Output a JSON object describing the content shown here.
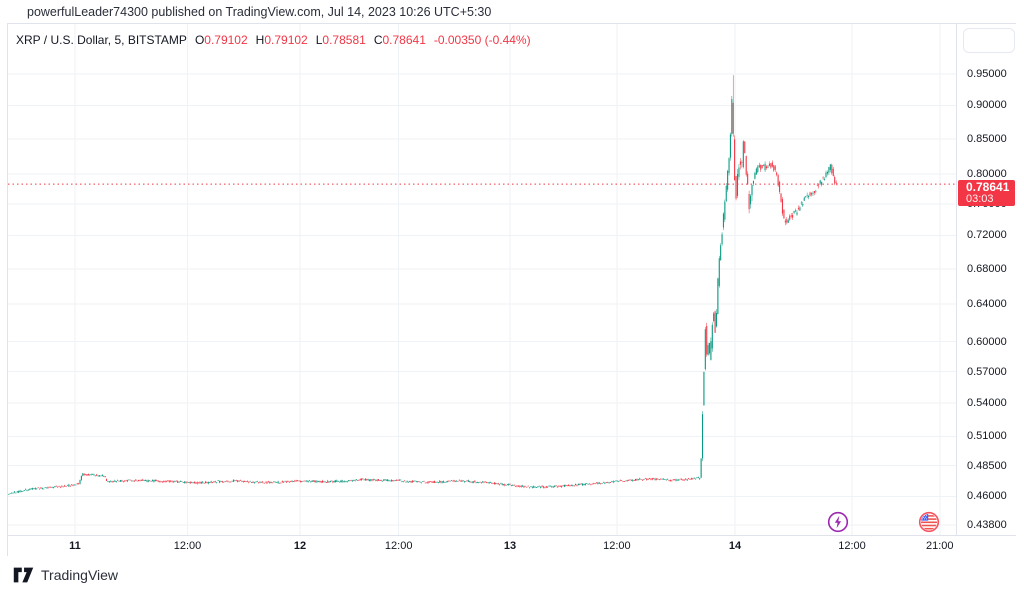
{
  "header": {
    "text": "powerfulLeader74300 published on TradingView.com, Jul 14, 2023 10:26 UTC+5:30"
  },
  "legend": {
    "symbol": "XRP / U.S. Dollar, 5, BITSTAMP",
    "ohlc": [
      {
        "k": "O",
        "v": "0.79102"
      },
      {
        "k": "H",
        "v": "0.79102"
      },
      {
        "k": "L",
        "v": "0.78581"
      },
      {
        "k": "C",
        "v": "0.78641"
      }
    ],
    "change": "-0.00350 (-0.44%)"
  },
  "price_label": {
    "price": "0.78641",
    "countdown": "03:03"
  },
  "footer": {
    "brand": "TradingView"
  },
  "chart_data": {
    "type": "candlestick",
    "title": "XRP / U.S. Dollar, 5, BITSTAMP",
    "symbol": "XRP/USD",
    "exchange": "BITSTAMP",
    "interval_minutes": 5,
    "scale": "log",
    "grid": true,
    "last": {
      "open": 0.79102,
      "high": 0.79102,
      "low": 0.78581,
      "close": 0.78641,
      "change": -0.0035,
      "change_percent": -0.44
    },
    "visible_price_range": [
      0.43,
      1.03
    ],
    "price_ticks": [
      {
        "label": "0.95000",
        "value": 0.95
      },
      {
        "label": "0.90000",
        "value": 0.9
      },
      {
        "label": "0.85000",
        "value": 0.85
      },
      {
        "label": "0.80000",
        "value": 0.8
      },
      {
        "label": "0.76000",
        "value": 0.76
      },
      {
        "label": "0.72000",
        "value": 0.72
      },
      {
        "label": "0.68000",
        "value": 0.68
      },
      {
        "label": "0.64000",
        "value": 0.64
      },
      {
        "label": "0.60000",
        "value": 0.6
      },
      {
        "label": "0.57000",
        "value": 0.57
      },
      {
        "label": "0.54000",
        "value": 0.54
      },
      {
        "label": "0.51000",
        "value": 0.51
      },
      {
        "label": "0.48500",
        "value": 0.485
      },
      {
        "label": "0.46000",
        "value": 0.46
      },
      {
        "label": "0.43800",
        "value": 0.438
      }
    ],
    "time_ticks": [
      {
        "label": "11",
        "day": 11,
        "bold": true
      },
      {
        "label": "12:00",
        "day": 11.5,
        "bold": false
      },
      {
        "label": "12",
        "day": 12,
        "bold": true
      },
      {
        "label": "12:00",
        "day": 12.47,
        "bold": false
      },
      {
        "label": "13",
        "day": 13,
        "bold": true
      },
      {
        "label": "12:00",
        "day": 13.475,
        "bold": false
      },
      {
        "label": "14",
        "day": 14,
        "bold": true
      },
      {
        "label": "12:00",
        "day": 14.5,
        "bold": false
      },
      {
        "label": "21:00",
        "day": 14.875,
        "bold": false
      }
    ],
    "start_day": 10.703,
    "end_day": 14.436,
    "candle_interval_days": 0.0062,
    "seed": 1337,
    "spike": {
      "day": 13.991,
      "high": 0.948
    },
    "path_keyframes": [
      [
        10.703,
        0.462
      ],
      [
        10.8,
        0.4658
      ],
      [
        10.95,
        0.4682
      ],
      [
        11.02,
        0.47
      ],
      [
        11.035,
        0.4778
      ],
      [
        11.1,
        0.4768
      ],
      [
        11.13,
        0.477
      ],
      [
        11.145,
        0.4718
      ],
      [
        11.25,
        0.473
      ],
      [
        11.4,
        0.4722
      ],
      [
        11.55,
        0.4708
      ],
      [
        11.7,
        0.4725
      ],
      [
        11.85,
        0.471
      ],
      [
        12.0,
        0.4722
      ],
      [
        12.15,
        0.4718
      ],
      [
        12.3,
        0.4735
      ],
      [
        12.45,
        0.4728
      ],
      [
        12.6,
        0.4712
      ],
      [
        12.75,
        0.4726
      ],
      [
        12.9,
        0.471
      ],
      [
        13.0,
        0.4692
      ],
      [
        13.1,
        0.4675
      ],
      [
        13.22,
        0.468
      ],
      [
        13.35,
        0.4698
      ],
      [
        13.5,
        0.4725
      ],
      [
        13.62,
        0.4742
      ],
      [
        13.72,
        0.473
      ],
      [
        13.8,
        0.4738
      ],
      [
        13.85,
        0.475
      ],
      [
        13.858,
        0.525
      ],
      [
        13.863,
        0.58
      ],
      [
        13.868,
        0.562
      ],
      [
        13.872,
        0.63
      ],
      [
        13.877,
        0.582
      ],
      [
        13.884,
        0.596
      ],
      [
        13.892,
        0.58
      ],
      [
        13.9,
        0.612
      ],
      [
        13.908,
        0.636
      ],
      [
        13.916,
        0.608
      ],
      [
        13.926,
        0.66
      ],
      [
        13.936,
        0.7
      ],
      [
        13.947,
        0.73
      ],
      [
        13.958,
        0.762
      ],
      [
        13.968,
        0.792
      ],
      [
        13.978,
        0.828
      ],
      [
        13.986,
        0.868
      ],
      [
        13.991,
        0.94
      ],
      [
        13.9955,
        0.845
      ],
      [
        14.002,
        0.79
      ],
      [
        14.008,
        0.762
      ],
      [
        14.014,
        0.8
      ],
      [
        14.021,
        0.818
      ],
      [
        14.032,
        0.808
      ],
      [
        14.04,
        0.858
      ],
      [
        14.048,
        0.805
      ],
      [
        14.058,
        0.778
      ],
      [
        14.064,
        0.758
      ],
      [
        14.075,
        0.782
      ],
      [
        14.09,
        0.8
      ],
      [
        14.105,
        0.812
      ],
      [
        14.125,
        0.808
      ],
      [
        14.145,
        0.815
      ],
      [
        14.165,
        0.81
      ],
      [
        14.18,
        0.8
      ],
      [
        14.192,
        0.778
      ],
      [
        14.205,
        0.752
      ],
      [
        14.215,
        0.738
      ],
      [
        14.235,
        0.742
      ],
      [
        14.256,
        0.748
      ],
      [
        14.27,
        0.752
      ],
      [
        14.285,
        0.76
      ],
      [
        14.3,
        0.768
      ],
      [
        14.32,
        0.772
      ],
      [
        14.342,
        0.778
      ],
      [
        14.36,
        0.786
      ],
      [
        14.375,
        0.792
      ],
      [
        14.385,
        0.796
      ],
      [
        14.4,
        0.806
      ],
      [
        14.412,
        0.81
      ],
      [
        14.42,
        0.8
      ],
      [
        14.428,
        0.792
      ],
      [
        14.436,
        0.78641
      ]
    ],
    "colors": {
      "up": "#089981",
      "down": "#f23645",
      "price_line": "#f23645",
      "label_bg": "#f23645",
      "grid": "#eff2f6",
      "border": "#e0e3eb",
      "axis_text": "#131722",
      "lightning": "#9c27b0",
      "flag_ring": "#f7525f",
      "flag_blue": "#3d5afe",
      "flag_red": "#ef5350"
    }
  }
}
